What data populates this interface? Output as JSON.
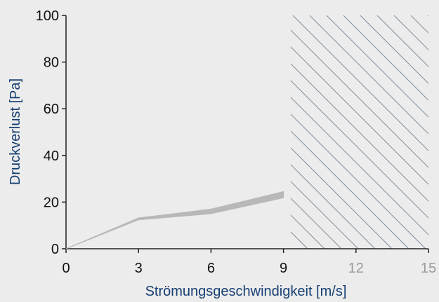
{
  "chart_data": {
    "type": "area",
    "xlabel": "Strömungsgeschwindigkeit [m/s]",
    "ylabel": "Druckverlust [Pa]",
    "xlim": [
      0,
      15
    ],
    "ylim": [
      0,
      100
    ],
    "x_ticks": [
      {
        "value": 0,
        "label": "0",
        "muted": false
      },
      {
        "value": 3,
        "label": "3",
        "muted": false
      },
      {
        "value": 6,
        "label": "6",
        "muted": false
      },
      {
        "value": 9,
        "label": "9",
        "muted": false
      },
      {
        "value": 12,
        "label": "12",
        "muted": true
      },
      {
        "value": 15,
        "label": "15",
        "muted": true
      }
    ],
    "y_ticks": [
      {
        "value": 0,
        "label": "0"
      },
      {
        "value": 20,
        "label": "20"
      },
      {
        "value": 40,
        "label": "40"
      },
      {
        "value": 60,
        "label": "60"
      },
      {
        "value": 80,
        "label": "80"
      },
      {
        "value": 100,
        "label": "100"
      }
    ],
    "band": {
      "x": [
        0,
        3,
        6,
        9
      ],
      "upper": [
        0,
        13.2,
        17.0,
        24.5
      ],
      "lower": [
        0,
        12.4,
        15.0,
        21.8
      ]
    },
    "shaded_region": {
      "x_start": 9.3,
      "x_end": 15,
      "pattern": "diagonal-hatch"
    },
    "grid": false,
    "legend": "none",
    "colors": {
      "background": "#ececec",
      "axis": "#222222",
      "band": "#b8b8b8",
      "hatch": "#7f8c99",
      "axis_title": "#173f73",
      "muted_ticks": "#9a9a9a"
    }
  }
}
